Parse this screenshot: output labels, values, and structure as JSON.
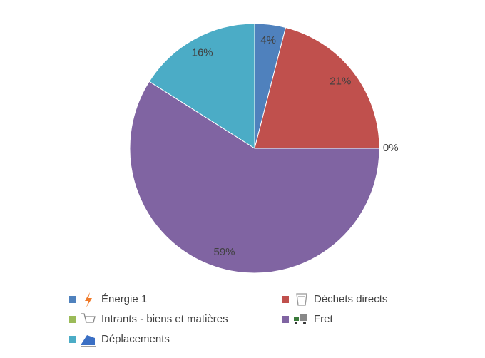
{
  "chart_data": {
    "type": "pie",
    "categories": [
      "Énergie 1",
      "Déchets directs",
      "Intrants - biens et matières",
      "Fret",
      "Déplacements"
    ],
    "values": [
      4,
      21,
      0,
      59,
      16
    ],
    "value_labels": [
      "4%",
      "21%",
      "0%",
      "59%",
      "16%"
    ],
    "colors": [
      "#4f81bd",
      "#c0504d",
      "#9bbb59",
      "#8064a2",
      "#4bacc6"
    ],
    "legend": "bottom"
  }
}
